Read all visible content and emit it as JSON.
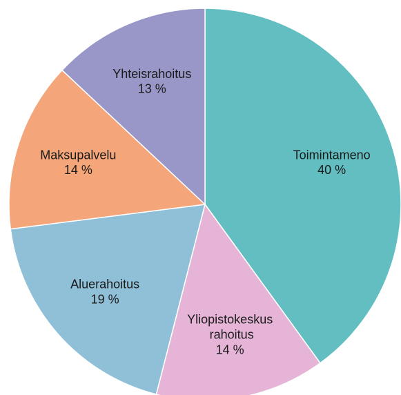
{
  "chart_data": {
    "type": "pie",
    "categories": [
      "Toimintameno",
      "Yliopistokeskus rahoitus",
      "Aluerahoitus",
      "Maksupalvelu",
      "Yhteisrahoitus"
    ],
    "values": [
      40,
      14,
      19,
      14,
      13
    ],
    "value_labels": [
      "40 %",
      "14 %",
      "19 %",
      "14 %",
      "13 %"
    ],
    "colors": [
      "#62bec1",
      "#e6b4d6",
      "#8fc0d8",
      "#f4a67a",
      "#9897c7"
    ]
  }
}
